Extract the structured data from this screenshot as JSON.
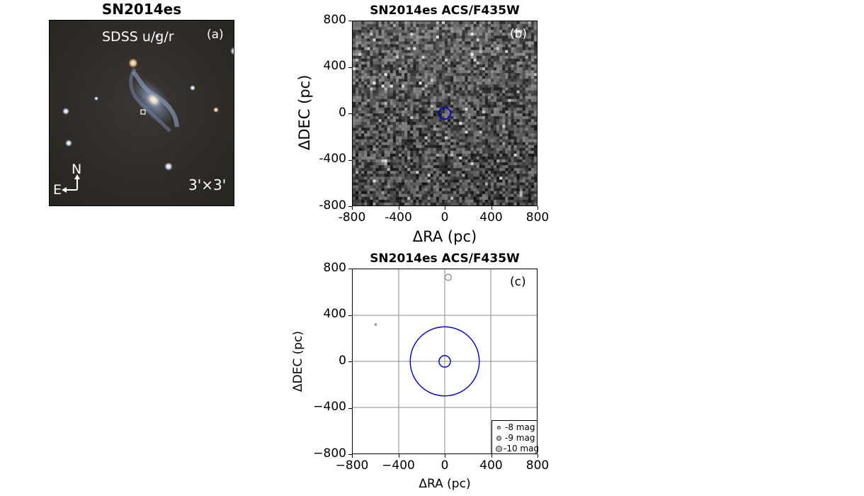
{
  "chart_data": [
    {
      "type": "image",
      "title": "SN2014es",
      "annotations": {
        "label": "SDSS u/g/r",
        "panel": "(a)",
        "fov": "3'×3'",
        "north": "N",
        "east": "E"
      }
    },
    {
      "type": "heatmap",
      "title": "SN2014es ACS/F435W",
      "panel": "(b)",
      "xlabel": "ΔRA (pc)",
      "ylabel": "ΔDEC (pc)",
      "xlim": [
        -800,
        800
      ],
      "ylim": [
        -800,
        800
      ],
      "xticks": [
        "-800",
        "-400",
        "0",
        "400",
        "800"
      ],
      "yticks": [
        "800",
        "400",
        "0",
        "-400",
        "-800"
      ],
      "marker": {
        "x": 0,
        "y": 0,
        "radius": 50,
        "color": "#0000cc"
      }
    },
    {
      "type": "scatter",
      "title": "SN2014es ACS/F435W",
      "panel": "(c)",
      "xlabel": "ΔRA (pc)",
      "ylabel": "ΔDEC (pc)",
      "xlim": [
        -800,
        800
      ],
      "ylim": [
        -800,
        800
      ],
      "xticks": [
        "−800",
        "−400",
        "0",
        "400",
        "800"
      ],
      "yticks": [
        "800",
        "400",
        "0",
        "−400",
        "−800"
      ],
      "grid": true,
      "circles": [
        {
          "x": 0,
          "y": 0,
          "radius": 300,
          "color": "#0000cc"
        },
        {
          "x": 0,
          "y": 0,
          "radius": 50,
          "color": "#0000cc"
        }
      ],
      "points": [
        {
          "x": 30,
          "y": 730,
          "mag": -10
        },
        {
          "x": -600,
          "y": 320,
          "mag": -7
        }
      ],
      "legend": {
        "placement": "lower-right",
        "entries": [
          "-8 mag",
          "-9 mag",
          "-10 mag"
        ]
      }
    }
  ]
}
